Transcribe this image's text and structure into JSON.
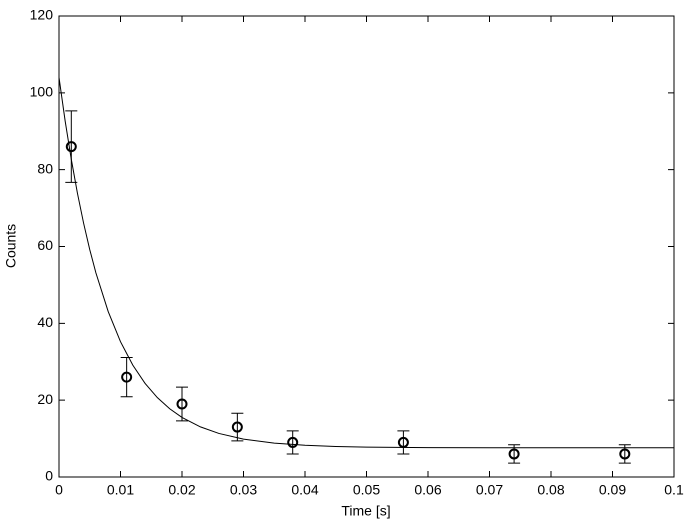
{
  "chart_data": {
    "type": "scatter",
    "xlabel": "Time [s]",
    "ylabel": "Counts",
    "xlim": [
      0,
      0.1
    ],
    "ylim": [
      0,
      120
    ],
    "xticks": [
      0,
      0.01,
      0.02,
      0.03,
      0.04,
      0.05,
      0.06,
      0.07,
      0.08,
      0.09,
      0.1
    ],
    "yticks": [
      0,
      20,
      40,
      60,
      80,
      100,
      120
    ],
    "color": "#000000",
    "points": {
      "x": [
        0.002,
        0.011,
        0.02,
        0.029,
        0.038,
        0.056,
        0.074,
        0.092
      ],
      "values": [
        86,
        26,
        19,
        13,
        9,
        9,
        6,
        6
      ],
      "errors": [
        9.3,
        5.1,
        4.4,
        3.6,
        3,
        3,
        2.4,
        2.4
      ]
    },
    "fit": {
      "x": [
        0,
        0.001,
        0.002,
        0.003,
        0.004,
        0.005,
        0.006,
        0.008,
        0.01,
        0.012,
        0.014,
        0.016,
        0.018,
        0.02,
        0.023,
        0.026,
        0.03,
        0.035,
        0.04,
        0.045,
        0.05,
        0.06,
        0.07,
        0.08,
        0.09,
        0.1
      ],
      "values": [
        104,
        92.67,
        82.68,
        73.85,
        66.07,
        59.2,
        53.14,
        43.06,
        35.22,
        29.11,
        24.35,
        20.65,
        17.76,
        15.51,
        13.04,
        11.34,
        9.87,
        8.81,
        8.25,
        7.95,
        7.79,
        7.65,
        7.61,
        7.6,
        7.6,
        7.6
      ]
    }
  }
}
